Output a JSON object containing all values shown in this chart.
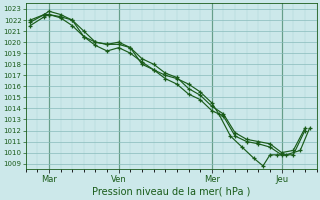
{
  "xlabel": "Pression niveau de la mer( hPa )",
  "bg_color": "#cce8ea",
  "grid_major_color": "#88bbbb",
  "grid_minor_color": "#aad4d4",
  "line_color": "#1a5c1a",
  "ylim_min": 1008.5,
  "ylim_max": 1023.5,
  "yticks": [
    1009,
    1010,
    1011,
    1012,
    1013,
    1014,
    1015,
    1016,
    1017,
    1018,
    1019,
    1020,
    1021,
    1022,
    1023
  ],
  "xtick_labels": [
    "Mar",
    "Ven",
    "Mer",
    "Jeu"
  ],
  "xtick_positions": [
    1,
    4,
    8,
    11
  ],
  "vline_positions": [
    1,
    4,
    8,
    11
  ],
  "xlim_min": 0,
  "xlim_max": 12.5,
  "line1_x": [
    0.2,
    0.8,
    1.0,
    1.5,
    2.0,
    2.5,
    3.0,
    3.5,
    4.0,
    4.5,
    5.0,
    5.5,
    6.0,
    6.5,
    7.0,
    7.5,
    8.0,
    8.5,
    9.0,
    9.5,
    10.0,
    10.5,
    11.0,
    11.5,
    12.0
  ],
  "line1_y": [
    1021.5,
    1022.3,
    1022.5,
    1022.2,
    1021.5,
    1020.5,
    1019.7,
    1019.2,
    1019.5,
    1019.0,
    1018.2,
    1017.5,
    1016.7,
    1016.2,
    1015.3,
    1014.8,
    1013.8,
    1013.3,
    1011.5,
    1011.0,
    1010.8,
    1010.5,
    1009.8,
    1009.8,
    1012.0
  ],
  "line2_x": [
    0.2,
    0.8,
    1.0,
    1.5,
    2.0,
    2.5,
    3.0,
    3.5,
    4.0,
    4.5,
    5.0,
    5.5,
    6.0,
    6.5,
    7.0,
    7.5,
    8.0,
    8.5,
    9.0,
    9.5,
    10.0,
    10.5,
    11.0,
    11.5,
    12.0
  ],
  "line2_y": [
    1021.8,
    1022.5,
    1022.5,
    1022.3,
    1022.0,
    1021.0,
    1020.0,
    1019.8,
    1019.8,
    1019.5,
    1018.5,
    1018.0,
    1017.2,
    1016.8,
    1015.8,
    1015.2,
    1014.2,
    1013.5,
    1011.8,
    1011.2,
    1011.0,
    1010.8,
    1010.0,
    1010.2,
    1012.2
  ],
  "line3_x": [
    0.2,
    0.8,
    1.0,
    1.5,
    2.0,
    2.5,
    3.0,
    3.5,
    4.0,
    4.5,
    5.0,
    5.5,
    6.0,
    6.5,
    7.0,
    7.5,
    8.0,
    8.3,
    8.8,
    9.3,
    9.8,
    10.2,
    10.5,
    10.8,
    11.2,
    11.8,
    12.2
  ],
  "line3_y": [
    1022.0,
    1022.5,
    1022.8,
    1022.5,
    1022.0,
    1020.5,
    1020.0,
    1019.8,
    1020.0,
    1019.5,
    1018.0,
    1017.5,
    1017.0,
    1016.7,
    1016.2,
    1015.5,
    1014.5,
    1013.5,
    1011.5,
    1010.5,
    1009.5,
    1008.8,
    1009.8,
    1009.8,
    1009.8,
    1010.2,
    1012.2
  ]
}
